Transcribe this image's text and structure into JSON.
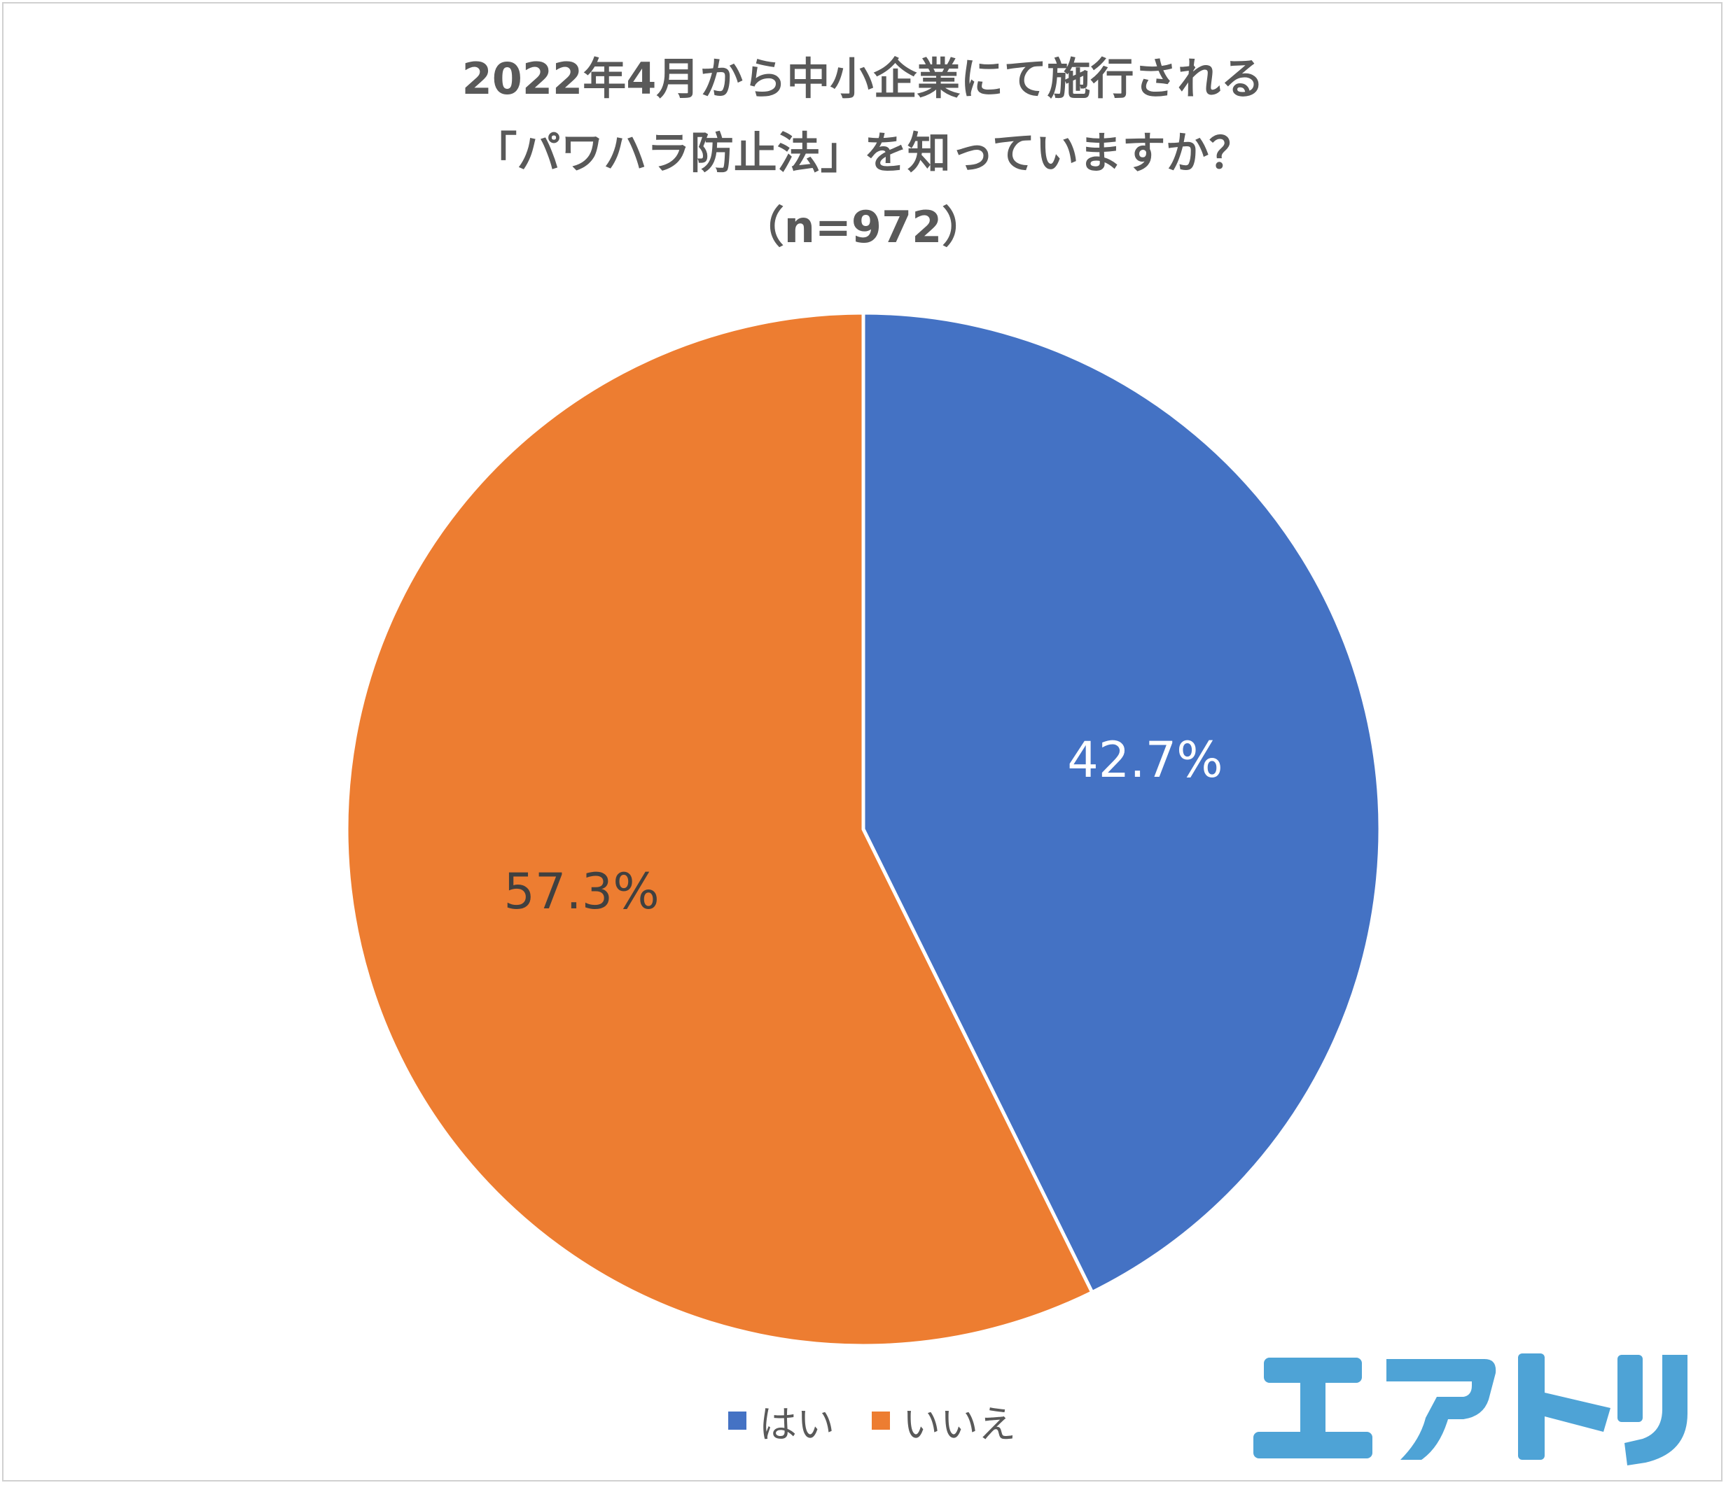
{
  "chart_data": {
    "type": "pie",
    "title_lines": [
      "2022年4月から中小企業にて施行される",
      "「パワハラ防止法」を知っていますか？",
      "（n=972）"
    ],
    "categories": [
      "はい",
      "いいえ"
    ],
    "values": [
      42.7,
      57.3
    ],
    "data_labels": [
      "42.7%",
      "57.3%"
    ],
    "colors": [
      "#4472c4",
      "#ed7d31"
    ],
    "label_colors": [
      "#ffffff",
      "#404040"
    ],
    "start_angle_deg": 0,
    "direction": "clockwise",
    "legend_position": "bottom"
  },
  "logo": {
    "icon": "airtori-logo",
    "color": "#4ea3d6"
  }
}
